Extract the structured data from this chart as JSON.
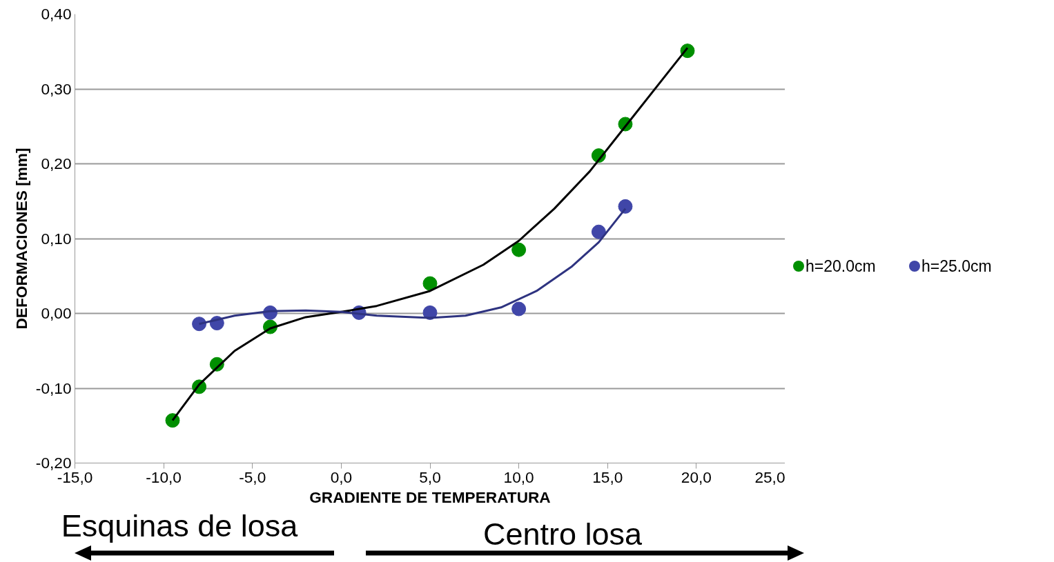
{
  "chart_data": {
    "type": "scatter",
    "xlabel": "GRADIENTE DE TEMPERATURA",
    "ylabel": "DEFORMACIONES [mm]",
    "xlim": [
      -15,
      25
    ],
    "ylim": [
      -0.2,
      0.4
    ],
    "xticks": [
      {
        "value": -15,
        "label": "-15,0"
      },
      {
        "value": -10,
        "label": "-10,0"
      },
      {
        "value": -5,
        "label": "-5,0"
      },
      {
        "value": 0,
        "label": "0,0"
      },
      {
        "value": 5,
        "label": "5,0"
      },
      {
        "value": 10,
        "label": "10,0"
      },
      {
        "value": 15,
        "label": "15,0"
      },
      {
        "value": 20,
        "label": "20,0"
      },
      {
        "value": 25,
        "label": "25,0"
      }
    ],
    "yticks": [
      {
        "value": -0.2,
        "label": "-0,20"
      },
      {
        "value": -0.1,
        "label": "-0,10"
      },
      {
        "value": 0,
        "label": "0,00"
      },
      {
        "value": 0.1,
        "label": "0,10"
      },
      {
        "value": 0.2,
        "label": "0,20"
      },
      {
        "value": 0.3,
        "label": "0,30"
      },
      {
        "value": 0.4,
        "label": "0,40"
      }
    ],
    "grid": "y",
    "legend": "right",
    "series": [
      {
        "name": "h=20.0cm",
        "marker": "circle",
        "color": "#008f00",
        "x": [
          -9.5,
          -8,
          -7,
          -4,
          5,
          10,
          14.5,
          16,
          19.5
        ],
        "values": [
          -0.143,
          -0.098,
          -0.068,
          -0.018,
          0.04,
          0.085,
          0.211,
          0.253,
          0.351
        ]
      },
      {
        "name": "h=25.0cm",
        "marker": "circle",
        "color": "#4046a8",
        "x": [
          -8,
          -7,
          -4,
          1,
          5,
          10,
          14.5,
          16
        ],
        "values": [
          -0.014,
          -0.013,
          0.001,
          0.001,
          0.001,
          0.006,
          0.109,
          0.143
        ]
      },
      {
        "type": "line",
        "marker": "none",
        "color": "#000000",
        "x": [
          -9.5,
          -8,
          -6,
          -4,
          -2,
          0,
          2,
          5,
          8,
          10,
          12,
          14,
          16,
          18,
          19.5
        ],
        "values": [
          -0.143,
          -0.095,
          -0.05,
          -0.02,
          -0.005,
          0.002,
          0.01,
          0.03,
          0.065,
          0.097,
          0.14,
          0.19,
          0.25,
          0.31,
          0.355
        ]
      },
      {
        "type": "line",
        "marker": "none",
        "color": "#2e3380",
        "x": [
          -8,
          -6,
          -4,
          -2,
          0,
          2,
          5,
          7,
          9,
          11,
          13,
          14.5,
          16
        ],
        "values": [
          -0.014,
          -0.003,
          0.003,
          0.004,
          0.002,
          -0.003,
          -0.006,
          -0.003,
          0.008,
          0.03,
          0.063,
          0.095,
          0.14
        ]
      }
    ],
    "annotations": [
      "Esquinas de losa",
      "Centro losa"
    ]
  }
}
